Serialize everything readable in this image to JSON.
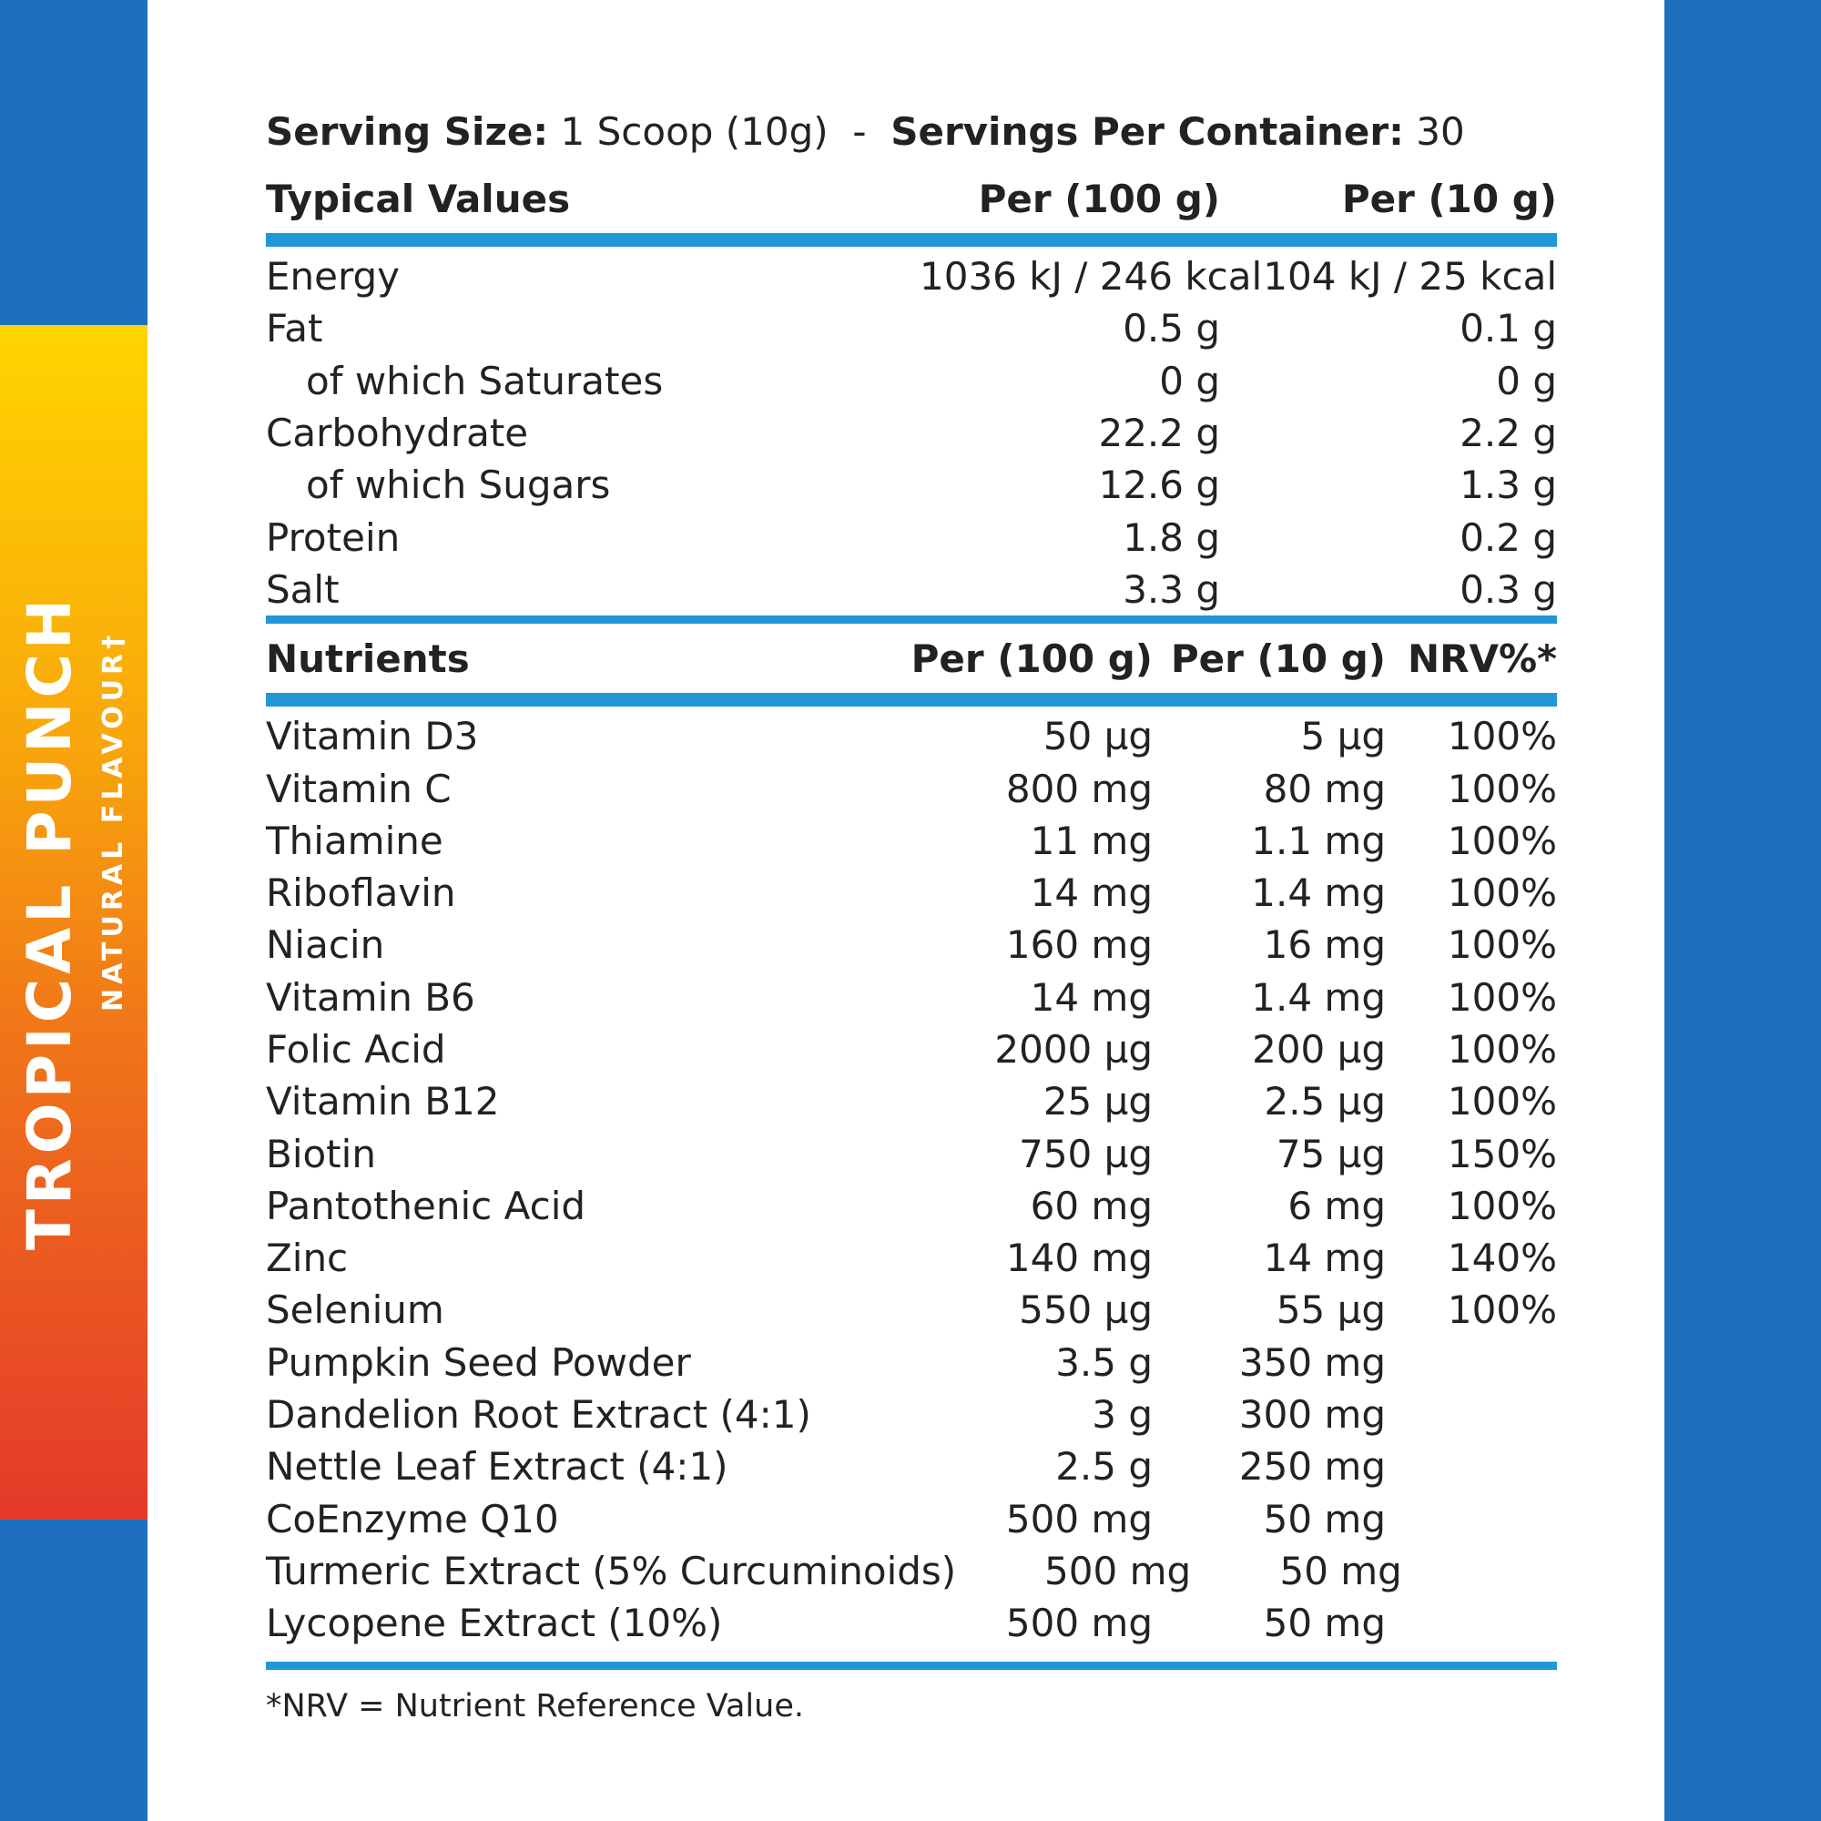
{
  "brand": {
    "flavour_name": "TROPICAL PUNCH",
    "flavour_note": "NATURAL FLAVOUR†",
    "colors": {
      "blue": "#1e6fbe",
      "accent_bar": "#2196d8",
      "gradient_top": "#ffd500",
      "gradient_bottom": "#e4392a"
    }
  },
  "serving": {
    "size_label": "Serving Size:",
    "size_value": "1 Scoop (10g)",
    "separator": "-",
    "servings_label": "Servings Per Container:",
    "servings_value": "30"
  },
  "typical": {
    "headers": {
      "label": "Typical Values",
      "per100": "Per (100 g)",
      "per10": "Per (10 g)"
    },
    "rows": [
      {
        "label": "Energy",
        "per100": "1036 kJ / 246 kcal",
        "per10": "104 kJ / 25 kcal"
      },
      {
        "label": "Fat",
        "per100": "0.5 g",
        "per10": "0.1 g"
      },
      {
        "label": "of which Saturates",
        "per100": "0 g",
        "per10": "0 g"
      },
      {
        "label": "Carbohydrate",
        "per100": "22.2 g",
        "per10": "2.2 g"
      },
      {
        "label": "of which Sugars",
        "per100": "12.6 g",
        "per10": "1.3 g"
      },
      {
        "label": "Protein",
        "per100": "1.8 g",
        "per10": "0.2 g"
      },
      {
        "label": "Salt",
        "per100": "3.3 g",
        "per10": "0.3 g"
      }
    ]
  },
  "nutrients": {
    "headers": {
      "label": "Nutrients",
      "per100": "Per (100 g)",
      "per10": "Per (10 g)",
      "nrv": "NRV%*"
    },
    "rows": [
      {
        "label": "Vitamin D3",
        "per100": "50 µg",
        "per10": "5 µg",
        "nrv": "100%"
      },
      {
        "label": "Vitamin C",
        "per100": "800 mg",
        "per10": "80 mg",
        "nrv": "100%"
      },
      {
        "label": "Thiamine",
        "per100": "11 mg",
        "per10": "1.1 mg",
        "nrv": "100%"
      },
      {
        "label": "Riboflavin",
        "per100": "14 mg",
        "per10": "1.4 mg",
        "nrv": "100%"
      },
      {
        "label": "Niacin",
        "per100": "160 mg",
        "per10": "16 mg",
        "nrv": "100%"
      },
      {
        "label": "Vitamin B6",
        "per100": "14 mg",
        "per10": "1.4 mg",
        "nrv": "100%"
      },
      {
        "label": "Folic Acid",
        "per100": "2000 µg",
        "per10": "200 µg",
        "nrv": "100%"
      },
      {
        "label": "Vitamin B12",
        "per100": "25 µg",
        "per10": "2.5 µg",
        "nrv": "100%"
      },
      {
        "label": "Biotin",
        "per100": "750 µg",
        "per10": "75 µg",
        "nrv": "150%"
      },
      {
        "label": "Pantothenic Acid",
        "per100": "60 mg",
        "per10": "6 mg",
        "nrv": "100%"
      },
      {
        "label": "Zinc",
        "per100": "140 mg",
        "per10": "14 mg",
        "nrv": "140%"
      },
      {
        "label": "Selenium",
        "per100": "550 µg",
        "per10": "55 µg",
        "nrv": "100%"
      },
      {
        "label": "Pumpkin Seed Powder",
        "per100": "3.5 g",
        "per10": "350 mg",
        "nrv": ""
      },
      {
        "label": "Dandelion Root Extract (4:1)",
        "per100": "3 g",
        "per10": "300 mg",
        "nrv": ""
      },
      {
        "label": "Nettle Leaf Extract (4:1)",
        "per100": "2.5 g",
        "per10": "250 mg",
        "nrv": ""
      },
      {
        "label": "CoEnzyme Q10",
        "per100": "500 mg",
        "per10": "50 mg",
        "nrv": ""
      },
      {
        "label": "Turmeric Extract (5% Curcuminoids)",
        "per100": "500 mg",
        "per10": "50 mg",
        "nrv": ""
      },
      {
        "label": "Lycopene Extract (10%)",
        "per100": "500 mg",
        "per10": "50 mg",
        "nrv": ""
      }
    ]
  },
  "footnote": "*NRV = Nutrient Reference Value."
}
